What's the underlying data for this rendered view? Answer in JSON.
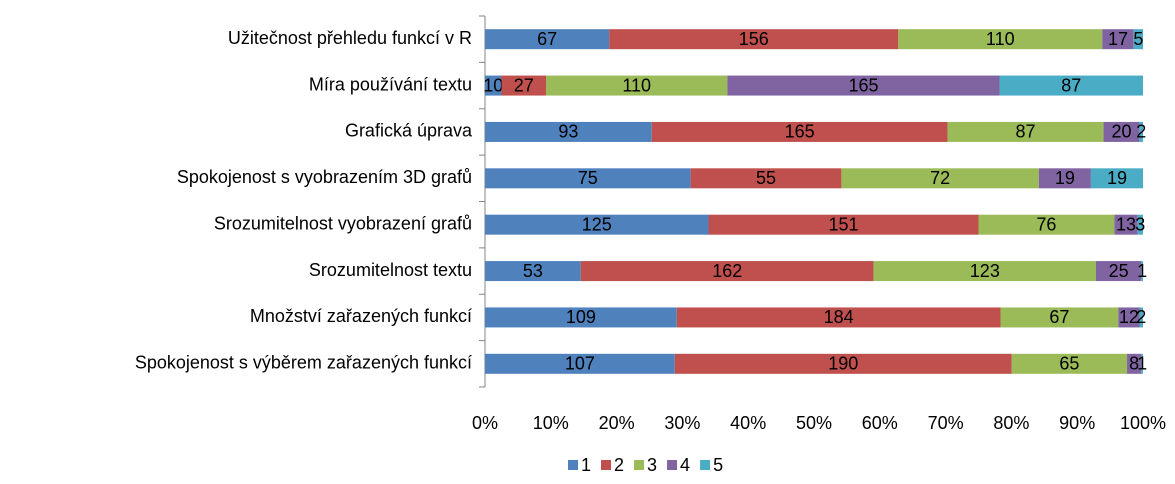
{
  "chart_data": {
    "type": "bar",
    "orientation": "horizontal",
    "stacked": "percent",
    "categories": [
      "Užitečnost přehledu funkcí v R",
      "Míra používání textu",
      "Grafická úprava",
      "Spokojenost s vyobrazením 3D grafů",
      "Srozumitelnost vyobrazení grafů",
      "Srozumitelnost textu",
      "Množství zařazených funkcí",
      "Spokojenost s výběrem zařazených funkcí"
    ],
    "series": [
      {
        "name": "1",
        "color": "#4f81bd",
        "values": [
          67,
          10,
          93,
          75,
          125,
          53,
          109,
          107
        ]
      },
      {
        "name": "2",
        "color": "#c0504d",
        "values": [
          156,
          27,
          165,
          55,
          151,
          162,
          184,
          190
        ]
      },
      {
        "name": "3",
        "color": "#9bbb59",
        "values": [
          110,
          110,
          87,
          72,
          76,
          123,
          67,
          65
        ]
      },
      {
        "name": "4",
        "color": "#8064a2",
        "values": [
          17,
          165,
          20,
          19,
          13,
          25,
          12,
          8
        ]
      },
      {
        "name": "5",
        "color": "#4bacc6",
        "values": [
          5,
          87,
          2,
          19,
          3,
          1,
          2,
          1
        ]
      }
    ],
    "xlim": [
      0,
      100
    ],
    "xticks": [
      {
        "value": 0,
        "label": "0%"
      },
      {
        "value": 10,
        "label": "10%"
      },
      {
        "value": 20,
        "label": "20%"
      },
      {
        "value": 30,
        "label": "30%"
      },
      {
        "value": 40,
        "label": "40%"
      },
      {
        "value": 50,
        "label": "50%"
      },
      {
        "value": 60,
        "label": "60%"
      },
      {
        "value": 70,
        "label": "70%"
      },
      {
        "value": 80,
        "label": "80%"
      },
      {
        "value": 90,
        "label": "90%"
      },
      {
        "value": 100,
        "label": "100%"
      }
    ],
    "grid": false,
    "legend": "bottom"
  }
}
